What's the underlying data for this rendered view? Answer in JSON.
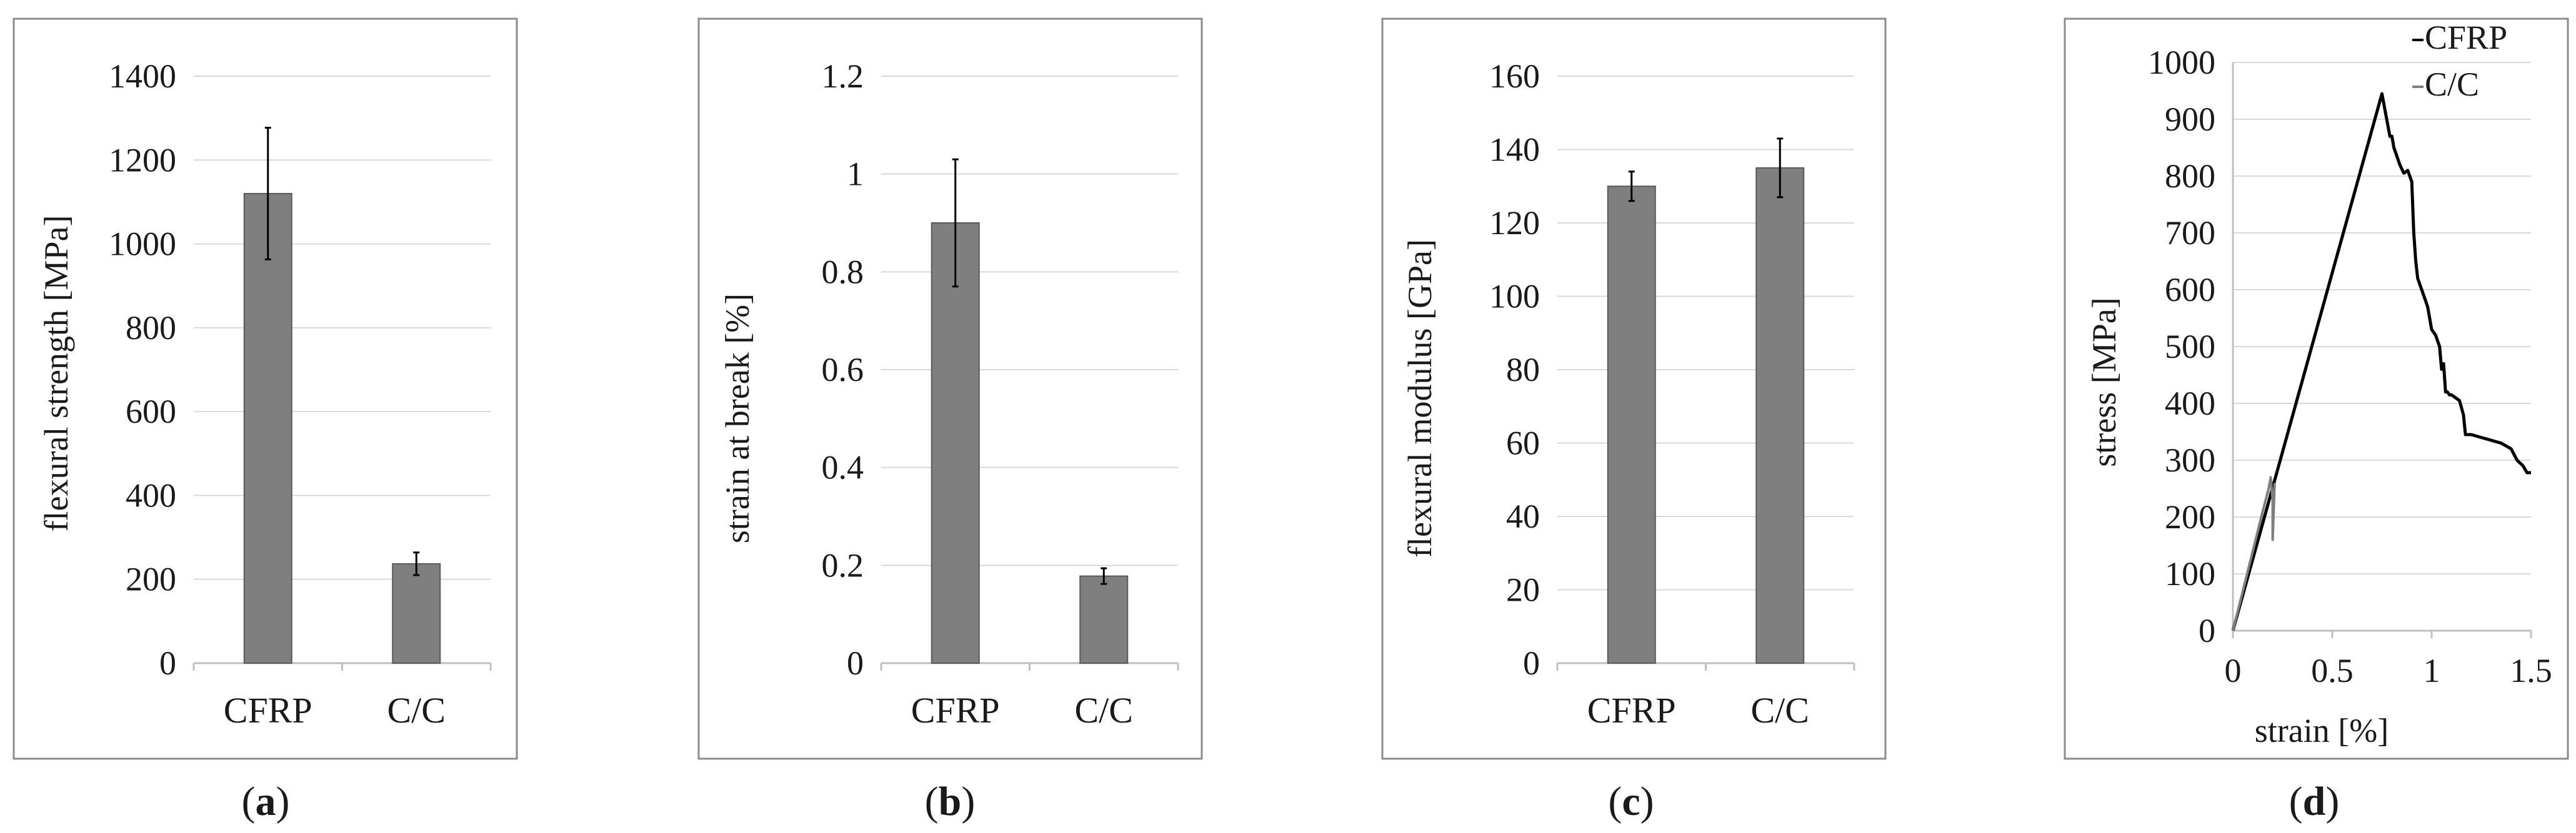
{
  "colors": {
    "bar": "#7f7f7f",
    "bar_edge": "#5a5a5a",
    "grid": "#d9d9d9",
    "frame": "#8c8c8c",
    "cfrp_line": "#000000",
    "cc_line": "#7f7f7f"
  },
  "chart_data": [
    {
      "type": "bar",
      "panel_label": "a",
      "categories": [
        "CFRP",
        "C/C"
      ],
      "values": [
        1120,
        237
      ],
      "errors": [
        157,
        27
      ],
      "ylabel": "flexural strength [MPa]",
      "ylim": [
        0,
        1400
      ],
      "yticks": [
        0,
        200,
        400,
        600,
        800,
        1000,
        1200,
        1400
      ],
      "ytick_labels": [
        "0",
        "200",
        "400",
        "600",
        "800",
        "1000",
        "1200",
        "1400"
      ],
      "grid": true
    },
    {
      "type": "bar",
      "panel_label": "b",
      "categories": [
        "CFRP",
        "C/C"
      ],
      "values": [
        0.9,
        0.178
      ],
      "errors": [
        0.13,
        0.016
      ],
      "ylabel": "strain at break [%]",
      "ylim": [
        0,
        1.2
      ],
      "yticks": [
        0,
        0.2,
        0.4,
        0.6,
        0.8,
        1,
        1.2
      ],
      "ytick_labels": [
        "0",
        "0.2",
        "0.4",
        "0.6",
        "0.8",
        "1",
        "1.2"
      ],
      "grid": true
    },
    {
      "type": "bar",
      "panel_label": "c",
      "categories": [
        "CFRP",
        "C/C"
      ],
      "values": [
        130,
        135
      ],
      "errors": [
        4,
        8
      ],
      "ylabel": "flexural modulus [GPa]",
      "ylim": [
        0,
        160
      ],
      "yticks": [
        0,
        20,
        40,
        60,
        80,
        100,
        120,
        140,
        160
      ],
      "ytick_labels": [
        "0",
        "20",
        "40",
        "60",
        "80",
        "100",
        "120",
        "140",
        "160"
      ],
      "grid": true
    },
    {
      "type": "line",
      "panel_label": "d",
      "xlabel": "strain [%]",
      "ylabel": "stress [MPa]",
      "xlim": [
        0,
        1.5
      ],
      "ylim": [
        0,
        1000
      ],
      "xticks": [
        0,
        0.5,
        1,
        1.5
      ],
      "xtick_labels": [
        "0",
        "0.5",
        "1",
        "1.5"
      ],
      "yticks": [
        0,
        100,
        200,
        300,
        400,
        500,
        600,
        700,
        800,
        900,
        1000
      ],
      "ytick_labels": [
        "0",
        "100",
        "200",
        "300",
        "400",
        "500",
        "600",
        "700",
        "800",
        "900",
        "1000"
      ],
      "grid": true,
      "legend": "top-right",
      "series": [
        {
          "name": "CFRP",
          "x": [
            0,
            0.75,
            0.79,
            0.8,
            0.81,
            0.82,
            0.84,
            0.86,
            0.88,
            0.9,
            0.91,
            0.92,
            0.93,
            0.95,
            0.97,
            0.98,
            1.0,
            1.02,
            1.04,
            1.05,
            1.06,
            1.07,
            1.08,
            1.09,
            1.1,
            1.12,
            1.14,
            1.16,
            1.17,
            1.2,
            1.25,
            1.3,
            1.35,
            1.4,
            1.43,
            1.46,
            1.48,
            1.5
          ],
          "y": [
            0,
            945,
            870,
            870,
            850,
            840,
            820,
            805,
            810,
            790,
            700,
            650,
            620,
            600,
            580,
            570,
            530,
            520,
            500,
            460,
            470,
            420,
            420,
            415,
            415,
            410,
            405,
            380,
            345,
            345,
            340,
            335,
            330,
            320,
            300,
            290,
            278,
            278
          ]
        },
        {
          "name": "C/C",
          "x": [
            0,
            0.05,
            0.1,
            0.15,
            0.18,
            0.19,
            0.2,
            0.2,
            0.21
          ],
          "y": [
            0,
            70,
            140,
            210,
            250,
            270,
            230,
            160,
            260
          ]
        }
      ]
    }
  ]
}
